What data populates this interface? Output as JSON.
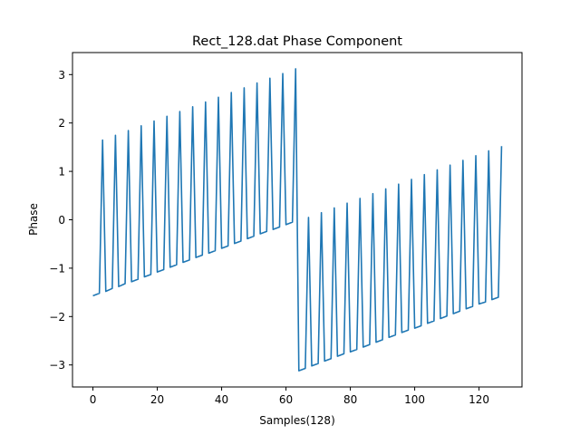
{
  "chart_data": {
    "type": "line",
    "title": "Rect_128.dat Phase Component",
    "xlabel": "Samples(128)",
    "ylabel": "Phase",
    "xlim": [
      -6.35,
      133.35
    ],
    "ylim": [
      -3.455,
      3.455
    ],
    "xticks": [
      0,
      20,
      40,
      60,
      80,
      100,
      120
    ],
    "yticks": [
      -3,
      -2,
      -1,
      0,
      1,
      2,
      3
    ],
    "ytick_labels": [
      "−3",
      "−2",
      "−1",
      "0",
      "1",
      "2",
      "3"
    ],
    "grid": false,
    "legend": "none",
    "series": [
      {
        "color": "#1f77b4",
        "x": [
          0,
          2,
          3,
          4,
          6,
          7,
          8,
          10,
          11,
          12,
          14,
          15,
          16,
          18,
          19,
          20,
          22,
          23,
          24,
          26,
          27,
          28,
          30,
          31,
          32,
          34,
          35,
          36,
          38,
          39,
          40,
          42,
          43,
          44,
          46,
          47,
          48,
          50,
          51,
          52,
          54,
          55,
          56,
          58,
          59,
          60,
          62,
          63,
          64,
          66,
          67,
          68,
          70,
          71,
          72,
          74,
          75,
          76,
          78,
          79,
          80,
          82,
          83,
          84,
          86,
          87,
          88,
          90,
          91,
          92,
          94,
          95,
          96,
          98,
          99,
          100,
          102,
          103,
          104,
          106,
          107,
          108,
          110,
          111,
          112,
          114,
          115,
          116,
          118,
          119,
          120,
          122,
          123,
          124,
          126,
          127
        ],
        "y": [
          -1.57,
          -1.52,
          1.647,
          -1.48,
          -1.42,
          1.745,
          -1.38,
          -1.32,
          1.843,
          -1.28,
          -1.23,
          1.942,
          -1.18,
          -1.13,
          2.04,
          -1.08,
          -1.03,
          2.138,
          -0.98,
          -0.93,
          2.236,
          -0.88,
          -0.83,
          2.335,
          -0.78,
          -0.73,
          2.433,
          -0.69,
          -0.64,
          2.531,
          -0.59,
          -0.54,
          2.629,
          -0.49,
          -0.44,
          2.727,
          -0.39,
          -0.34,
          2.826,
          -0.29,
          -0.24,
          2.924,
          -0.2,
          -0.15,
          3.022,
          -0.1,
          -0.05,
          3.12,
          -3.12,
          -3.07,
          0.049,
          -3.02,
          -2.97,
          0.147,
          -2.92,
          -2.87,
          0.245,
          -2.82,
          -2.77,
          0.344,
          -2.73,
          -2.68,
          0.442,
          -2.63,
          -2.58,
          0.54,
          -2.53,
          -2.48,
          0.638,
          -2.43,
          -2.38,
          0.736,
          -2.33,
          -2.28,
          0.835,
          -2.24,
          -2.19,
          0.933,
          -2.14,
          -2.09,
          1.031,
          -2.04,
          -1.99,
          1.129,
          -1.94,
          -1.89,
          1.227,
          -1.84,
          -1.79,
          1.325,
          -1.74,
          -1.7,
          1.424,
          -1.65,
          -1.6,
          1.522
        ]
      }
    ]
  }
}
